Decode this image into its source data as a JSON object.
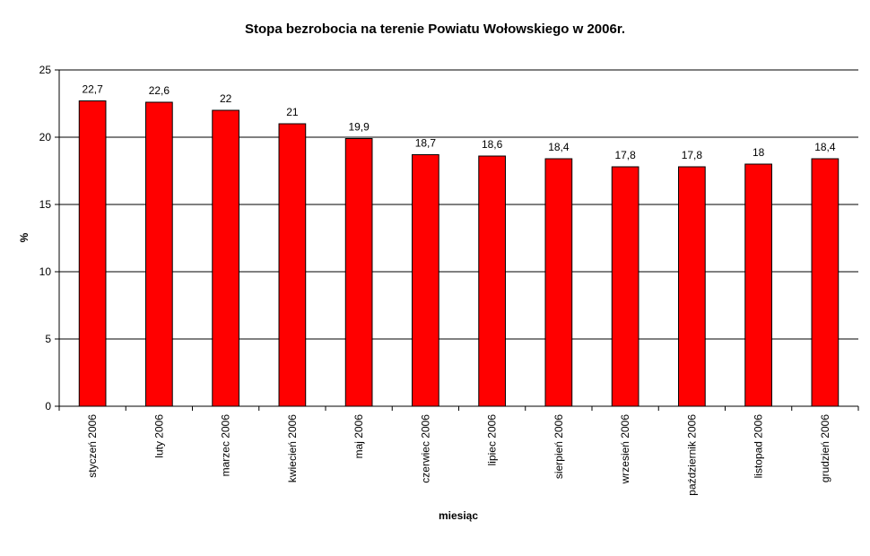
{
  "chart_data": {
    "type": "bar",
    "title": "Stopa bezrobocia na terenie Powiatu Wołowskiego w 2006r.",
    "xlabel": "miesiąc",
    "ylabel": "%",
    "ylim": [
      0,
      25
    ],
    "yticks": [
      0,
      5,
      10,
      15,
      20,
      25
    ],
    "grid": true,
    "legend": false,
    "categories": [
      "styczeń 2006",
      "luty 2006",
      "marzec 2006",
      "kwiecień 2006",
      "maj 2006",
      "czerwiec 2006",
      "lipiec 2006",
      "sierpień 2006",
      "wrzesień 2006",
      "październik 2006",
      "listopad 2006",
      "grudzień 2006"
    ],
    "values": [
      22.7,
      22.6,
      22,
      21,
      19.9,
      18.7,
      18.6,
      18.4,
      17.8,
      17.8,
      18,
      18.4
    ],
    "data_labels": [
      "22,7",
      "22,6",
      "22",
      "21",
      "19,9",
      "18,7",
      "18,6",
      "18,4",
      "17,8",
      "17,8",
      "18",
      "18,4"
    ],
    "bar_color": "#ff0000"
  }
}
